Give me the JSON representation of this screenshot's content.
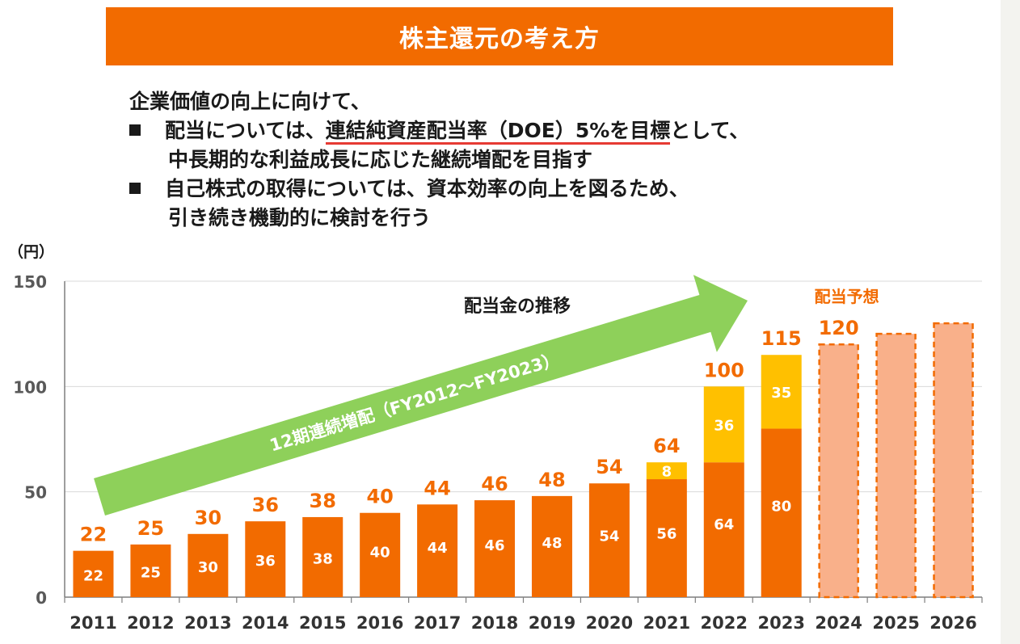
{
  "header": {
    "title": "株主還元の考え方"
  },
  "policy": {
    "intro": "企業価値の向上に向けて、",
    "bullets": [
      {
        "prefix": "配当については、",
        "emphasis": "連結純資産配当率（DOE）5%を目標",
        "suffix": "として、",
        "line2": "中長期的な利益成長に応じた継続増配を目指す"
      },
      {
        "line1": "自己株式の取得については、資本効率の向上を図るため、",
        "line2": "引き続き機動的に検討を行う"
      }
    ]
  },
  "chart_data": {
    "type": "bar",
    "ylabel": "（円）",
    "ylim": [
      0,
      150
    ],
    "yticks": [
      0,
      50,
      100,
      150
    ],
    "grid": true,
    "categories": [
      "2011",
      "2012",
      "2013",
      "2014",
      "2015",
      "2016",
      "2017",
      "2018",
      "2019",
      "2020",
      "2021",
      "2022",
      "2023",
      "2024",
      "2025",
      "2026"
    ],
    "series": [
      {
        "values": [
          22,
          25,
          30,
          36,
          38,
          40,
          44,
          46,
          48,
          54,
          56,
          64,
          80,
          null,
          null,
          null
        ],
        "color": "#f26b00"
      },
      {
        "values": [
          null,
          null,
          null,
          null,
          null,
          null,
          null,
          null,
          null,
          null,
          8,
          36,
          35,
          null,
          null,
          null
        ],
        "color": "#ffc000"
      },
      {
        "values": [
          null,
          null,
          null,
          null,
          null,
          null,
          null,
          null,
          null,
          null,
          null,
          null,
          null,
          120,
          125,
          130
        ],
        "color": "#f9b08a",
        "style": "dashed"
      }
    ],
    "totals": [
      "22",
      "25",
      "30",
      "36",
      "38",
      "40",
      "44",
      "46",
      "48",
      "54",
      "64",
      "100",
      "115",
      "120",
      "",
      ""
    ],
    "annotations": {
      "trend_title": "配当金の推移",
      "arrow_text": "12期連続増配（FY2012～FY2023）",
      "forecast_label": "配当予想"
    },
    "colors": {
      "base": "#f26b00",
      "extra": "#ffc000",
      "forecast_fill": "#f9b08a",
      "forecast_border": "#f26b00",
      "arrow": "#8ed05a",
      "total_label": "#f26b00"
    }
  }
}
